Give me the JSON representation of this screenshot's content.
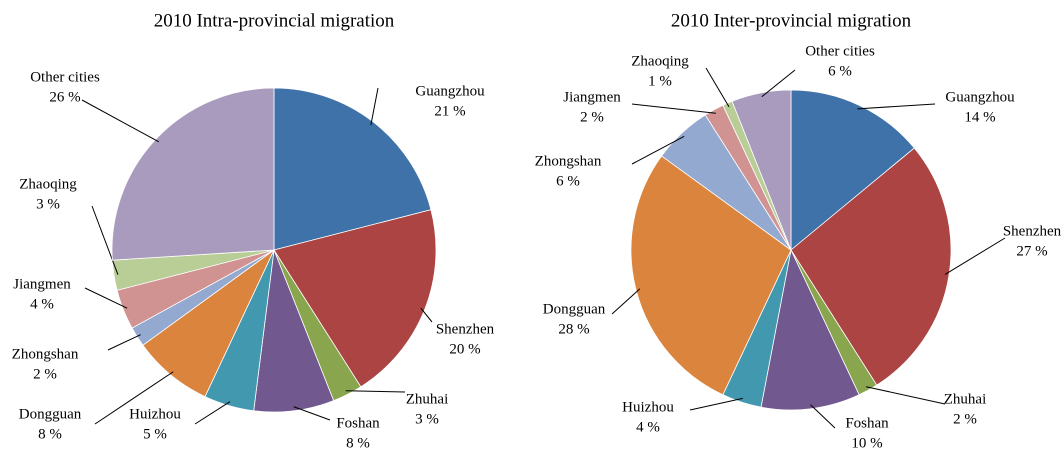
{
  "chart_data": [
    {
      "type": "pie",
      "title": "2010 Intra-provincial migration",
      "categories": [
        "Guangzhou",
        "Shenzhen",
        "Zhuhai",
        "Foshan",
        "Huizhou",
        "Dongguan",
        "Zhongshan",
        "Jiangmen",
        "Zhaoqing",
        "Other cities"
      ],
      "values": [
        21,
        20,
        3,
        8,
        5,
        8,
        2,
        4,
        3,
        26
      ],
      "value_labels": [
        "21 %",
        "20 %",
        "3 %",
        "8 %",
        "5 %",
        "8 %",
        "2 %",
        "4 %",
        "3 %",
        "26 %"
      ],
      "colors": [
        "#3f72a8",
        "#ab4442",
        "#89a64e",
        "#71588f",
        "#4198af",
        "#db843d",
        "#93a9d0",
        "#d09392",
        "#b9cd96",
        "#a99bbd"
      ]
    },
    {
      "type": "pie",
      "title": "2010 Inter-provincial migration",
      "categories": [
        "Guangzhou",
        "Shenzhen",
        "Zhuhai",
        "Foshan",
        "Huizhou",
        "Dongguan",
        "Zhongshan",
        "Jiangmen",
        "Zhaoqing",
        "Other cities"
      ],
      "values": [
        14,
        27,
        2,
        10,
        4,
        28,
        6,
        2,
        1,
        6
      ],
      "value_labels": [
        "14 %",
        "27 %",
        "2 %",
        "10 %",
        "4 %",
        "28 %",
        "6 %",
        "2 %",
        "1 %",
        "6 %"
      ],
      "colors": [
        "#3f72a8",
        "#ab4442",
        "#89a64e",
        "#71588f",
        "#4198af",
        "#db843d",
        "#93a9d0",
        "#d09392",
        "#b9cd96",
        "#a99bbd"
      ]
    }
  ]
}
